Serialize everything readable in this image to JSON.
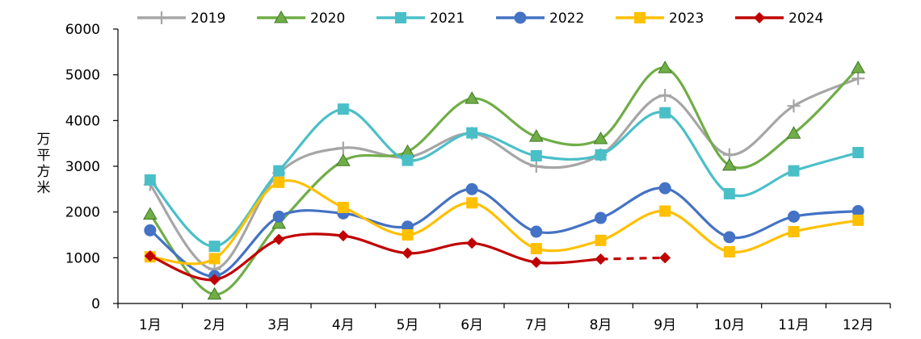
{
  "chart_data": {
    "type": "line",
    "categories": [
      "1月",
      "2月",
      "3月",
      "4月",
      "5月",
      "6月",
      "7月",
      "8月",
      "9月",
      "10月",
      "11月",
      "12月"
    ],
    "ylabel": "万平方米",
    "ylim": [
      0,
      6000
    ],
    "yticks": [
      0,
      1000,
      2000,
      3000,
      4000,
      5000,
      6000
    ],
    "grid": false,
    "legend_position": "top",
    "series": [
      {
        "name": "2019",
        "color": "#A6A6A6",
        "marker": "plus",
        "values": [
          2600,
          750,
          2850,
          3400,
          3200,
          3720,
          3000,
          3250,
          4550,
          3250,
          4320,
          4920
        ]
      },
      {
        "name": "2020",
        "color": "#70AD47",
        "marker": "triangle",
        "values": [
          1950,
          200,
          1750,
          3120,
          3320,
          4480,
          3650,
          3600,
          5150,
          3020,
          3720,
          5150
        ]
      },
      {
        "name": "2021",
        "color": "#4BBFC8",
        "marker": "square",
        "values": [
          2700,
          1250,
          2900,
          4250,
          3130,
          3730,
          3230,
          3250,
          4170,
          2400,
          2900,
          3300
        ]
      },
      {
        "name": "2022",
        "color": "#4472C4",
        "marker": "circle",
        "values": [
          1600,
          600,
          1900,
          1970,
          1680,
          2500,
          1570,
          1870,
          2520,
          1450,
          1900,
          2020
        ]
      },
      {
        "name": "2023",
        "color": "#FFC000",
        "marker": "square",
        "values": [
          1020,
          980,
          2650,
          2100,
          1500,
          2200,
          1200,
          1380,
          2020,
          1130,
          1570,
          1820
        ]
      },
      {
        "name": "2024",
        "color": "#C00000",
        "marker": "diamond",
        "values": [
          1040,
          520,
          1400,
          1480,
          1100,
          1320,
          900,
          970,
          null,
          null,
          null,
          null
        ],
        "projection": {
          "from_index": 7,
          "to_index": 8,
          "value": 1000
        }
      }
    ]
  }
}
